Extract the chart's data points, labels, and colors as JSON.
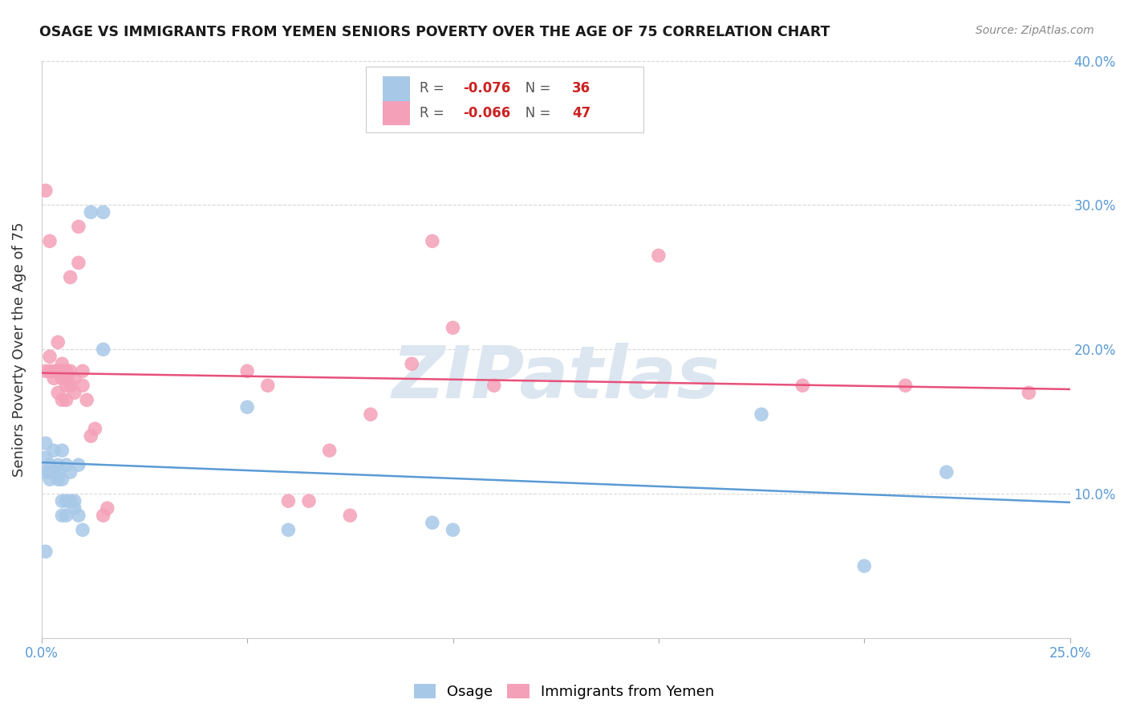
{
  "title": "OSAGE VS IMMIGRANTS FROM YEMEN SENIORS POVERTY OVER THE AGE OF 75 CORRELATION CHART",
  "source": "Source: ZipAtlas.com",
  "ylabel": "Seniors Poverty Over the Age of 75",
  "xlabel_ticks": [
    "0.0%",
    "",
    "",
    "",
    "",
    "25.0%"
  ],
  "xlabel_vals": [
    0.0,
    0.05,
    0.1,
    0.15,
    0.2,
    0.25
  ],
  "ylabel_ticks_right": [
    "",
    "10.0%",
    "20.0%",
    "30.0%",
    "40.0%"
  ],
  "ylabel_vals": [
    0.0,
    0.1,
    0.2,
    0.3,
    0.4
  ],
  "xlim": [
    0.0,
    0.25
  ],
  "ylim": [
    0.0,
    0.4
  ],
  "legend_labels": [
    "Osage",
    "Immigrants from Yemen"
  ],
  "osage_R": "-0.076",
  "osage_N": "36",
  "yemen_R": "-0.066",
  "yemen_N": "47",
  "osage_color": "#a8c8e8",
  "yemen_color": "#f4a0b8",
  "osage_line_color": "#5b9bd5",
  "yemen_line_color": "#e8507a",
  "watermark": "ZIPatlas",
  "watermark_color": "#dce6f0",
  "background_color": "#ffffff",
  "grid_color": "#d8d8d8",
  "title_color": "#1a1a1a",
  "source_color": "#888888",
  "tick_color": "#5b9bd5",
  "label_color": "#333333",
  "legend_text_color": "#555555",
  "legend_val_color": "#cc2222",
  "osage_x": [
    0.001,
    0.001,
    0.001,
    0.002,
    0.002,
    0.002,
    0.003,
    0.003,
    0.004,
    0.004,
    0.004,
    0.005,
    0.005,
    0.005,
    0.005,
    0.006,
    0.006,
    0.006,
    0.007,
    0.007,
    0.008,
    0.008,
    0.009,
    0.009,
    0.01,
    0.012,
    0.015,
    0.015,
    0.05,
    0.06,
    0.095,
    0.1,
    0.175,
    0.2,
    0.22,
    0.001
  ],
  "osage_y": [
    0.135,
    0.125,
    0.115,
    0.12,
    0.115,
    0.11,
    0.13,
    0.115,
    0.12,
    0.115,
    0.11,
    0.11,
    0.13,
    0.095,
    0.085,
    0.12,
    0.095,
    0.085,
    0.115,
    0.095,
    0.09,
    0.095,
    0.12,
    0.085,
    0.075,
    0.295,
    0.295,
    0.2,
    0.16,
    0.075,
    0.08,
    0.075,
    0.155,
    0.05,
    0.115,
    0.06
  ],
  "yemen_x": [
    0.001,
    0.001,
    0.002,
    0.002,
    0.002,
    0.003,
    0.003,
    0.004,
    0.004,
    0.004,
    0.005,
    0.005,
    0.005,
    0.005,
    0.006,
    0.006,
    0.006,
    0.006,
    0.007,
    0.007,
    0.007,
    0.008,
    0.008,
    0.009,
    0.009,
    0.01,
    0.01,
    0.011,
    0.012,
    0.013,
    0.015,
    0.016,
    0.05,
    0.055,
    0.065,
    0.09,
    0.095,
    0.1,
    0.11,
    0.15,
    0.185,
    0.21,
    0.24,
    0.06,
    0.075,
    0.07,
    0.08
  ],
  "yemen_y": [
    0.185,
    0.31,
    0.275,
    0.195,
    0.185,
    0.185,
    0.18,
    0.205,
    0.185,
    0.17,
    0.19,
    0.185,
    0.18,
    0.165,
    0.185,
    0.18,
    0.175,
    0.165,
    0.25,
    0.185,
    0.175,
    0.18,
    0.17,
    0.26,
    0.285,
    0.185,
    0.175,
    0.165,
    0.14,
    0.145,
    0.085,
    0.09,
    0.185,
    0.175,
    0.095,
    0.19,
    0.275,
    0.215,
    0.175,
    0.265,
    0.175,
    0.175,
    0.17,
    0.095,
    0.085,
    0.13,
    0.155
  ]
}
